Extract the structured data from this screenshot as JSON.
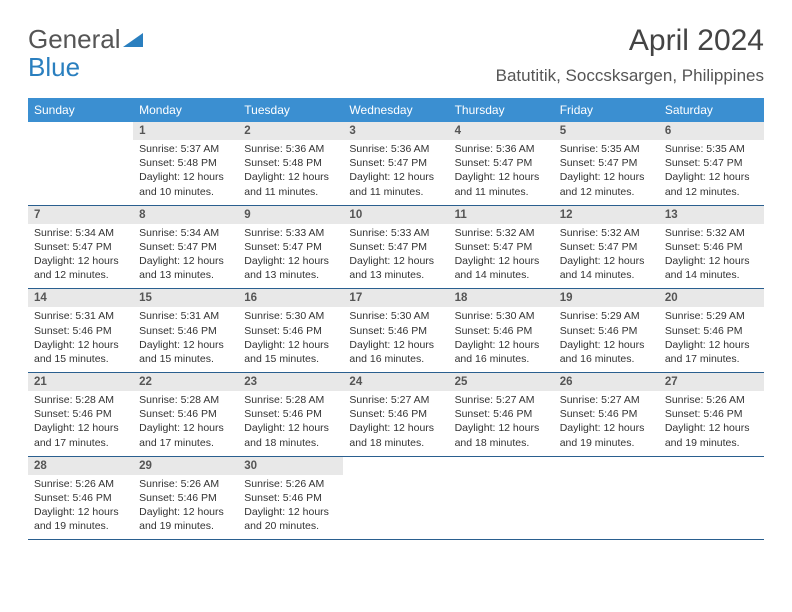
{
  "brand": {
    "part1": "General",
    "part2": "Blue"
  },
  "title": "April 2024",
  "location": "Batutitik, Soccsksargen, Philippines",
  "colors": {
    "header_bg": "#3b8fd1",
    "header_text": "#ffffff",
    "daynum_bg": "#e8e8e8",
    "daynum_text": "#555555",
    "row_border": "#2a5f8f",
    "body_text": "#333333",
    "logo_gray": "#555555",
    "logo_blue": "#2a7fbf"
  },
  "typography": {
    "title_fontsize": 30,
    "location_fontsize": 17,
    "weekday_fontsize": 12,
    "daynum_fontsize": 11.5,
    "detail_fontsize": 10.5
  },
  "weekdays": [
    "Sunday",
    "Monday",
    "Tuesday",
    "Wednesday",
    "Thursday",
    "Friday",
    "Saturday"
  ],
  "weeks": [
    [
      null,
      {
        "n": "1",
        "sr": "5:37 AM",
        "ss": "5:48 PM",
        "dl": "12 hours and 10 minutes."
      },
      {
        "n": "2",
        "sr": "5:36 AM",
        "ss": "5:48 PM",
        "dl": "12 hours and 11 minutes."
      },
      {
        "n": "3",
        "sr": "5:36 AM",
        "ss": "5:47 PM",
        "dl": "12 hours and 11 minutes."
      },
      {
        "n": "4",
        "sr": "5:36 AM",
        "ss": "5:47 PM",
        "dl": "12 hours and 11 minutes."
      },
      {
        "n": "5",
        "sr": "5:35 AM",
        "ss": "5:47 PM",
        "dl": "12 hours and 12 minutes."
      },
      {
        "n": "6",
        "sr": "5:35 AM",
        "ss": "5:47 PM",
        "dl": "12 hours and 12 minutes."
      }
    ],
    [
      {
        "n": "7",
        "sr": "5:34 AM",
        "ss": "5:47 PM",
        "dl": "12 hours and 12 minutes."
      },
      {
        "n": "8",
        "sr": "5:34 AM",
        "ss": "5:47 PM",
        "dl": "12 hours and 13 minutes."
      },
      {
        "n": "9",
        "sr": "5:33 AM",
        "ss": "5:47 PM",
        "dl": "12 hours and 13 minutes."
      },
      {
        "n": "10",
        "sr": "5:33 AM",
        "ss": "5:47 PM",
        "dl": "12 hours and 13 minutes."
      },
      {
        "n": "11",
        "sr": "5:32 AM",
        "ss": "5:47 PM",
        "dl": "12 hours and 14 minutes."
      },
      {
        "n": "12",
        "sr": "5:32 AM",
        "ss": "5:47 PM",
        "dl": "12 hours and 14 minutes."
      },
      {
        "n": "13",
        "sr": "5:32 AM",
        "ss": "5:46 PM",
        "dl": "12 hours and 14 minutes."
      }
    ],
    [
      {
        "n": "14",
        "sr": "5:31 AM",
        "ss": "5:46 PM",
        "dl": "12 hours and 15 minutes."
      },
      {
        "n": "15",
        "sr": "5:31 AM",
        "ss": "5:46 PM",
        "dl": "12 hours and 15 minutes."
      },
      {
        "n": "16",
        "sr": "5:30 AM",
        "ss": "5:46 PM",
        "dl": "12 hours and 15 minutes."
      },
      {
        "n": "17",
        "sr": "5:30 AM",
        "ss": "5:46 PM",
        "dl": "12 hours and 16 minutes."
      },
      {
        "n": "18",
        "sr": "5:30 AM",
        "ss": "5:46 PM",
        "dl": "12 hours and 16 minutes."
      },
      {
        "n": "19",
        "sr": "5:29 AM",
        "ss": "5:46 PM",
        "dl": "12 hours and 16 minutes."
      },
      {
        "n": "20",
        "sr": "5:29 AM",
        "ss": "5:46 PM",
        "dl": "12 hours and 17 minutes."
      }
    ],
    [
      {
        "n": "21",
        "sr": "5:28 AM",
        "ss": "5:46 PM",
        "dl": "12 hours and 17 minutes."
      },
      {
        "n": "22",
        "sr": "5:28 AM",
        "ss": "5:46 PM",
        "dl": "12 hours and 17 minutes."
      },
      {
        "n": "23",
        "sr": "5:28 AM",
        "ss": "5:46 PM",
        "dl": "12 hours and 18 minutes."
      },
      {
        "n": "24",
        "sr": "5:27 AM",
        "ss": "5:46 PM",
        "dl": "12 hours and 18 minutes."
      },
      {
        "n": "25",
        "sr": "5:27 AM",
        "ss": "5:46 PM",
        "dl": "12 hours and 18 minutes."
      },
      {
        "n": "26",
        "sr": "5:27 AM",
        "ss": "5:46 PM",
        "dl": "12 hours and 19 minutes."
      },
      {
        "n": "27",
        "sr": "5:26 AM",
        "ss": "5:46 PM",
        "dl": "12 hours and 19 minutes."
      }
    ],
    [
      {
        "n": "28",
        "sr": "5:26 AM",
        "ss": "5:46 PM",
        "dl": "12 hours and 19 minutes."
      },
      {
        "n": "29",
        "sr": "5:26 AM",
        "ss": "5:46 PM",
        "dl": "12 hours and 19 minutes."
      },
      {
        "n": "30",
        "sr": "5:26 AM",
        "ss": "5:46 PM",
        "dl": "12 hours and 20 minutes."
      },
      null,
      null,
      null,
      null
    ]
  ],
  "labels": {
    "sunrise": "Sunrise:",
    "sunset": "Sunset:",
    "daylight": "Daylight:"
  }
}
